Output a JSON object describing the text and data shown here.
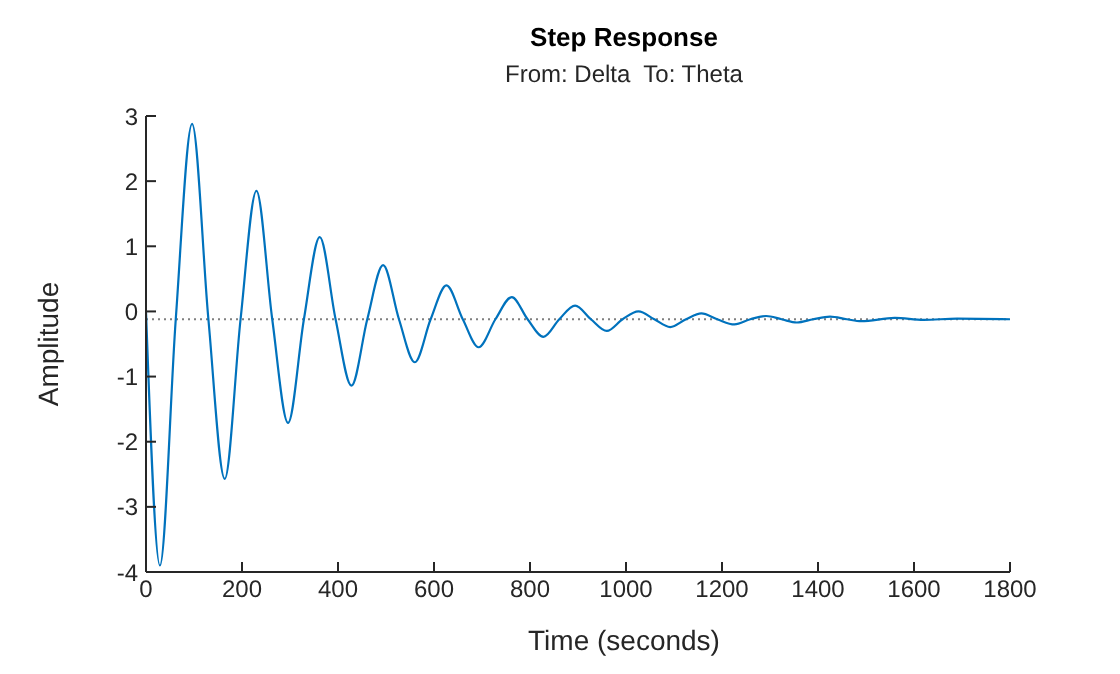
{
  "chart_data": {
    "type": "line",
    "title": "Step Response",
    "subtitle": "From: Delta  To: Theta",
    "xlabel": "Time (seconds)",
    "ylabel": "Amplitude",
    "x": [
      0,
      29,
      62,
      96,
      130,
      164,
      197,
      230,
      263,
      296,
      329,
      362,
      395,
      428,
      461,
      494,
      527,
      560,
      593,
      626,
      660,
      693,
      728,
      762,
      795,
      828,
      861,
      894,
      927,
      960,
      993,
      1026,
      1059,
      1092,
      1125,
      1157,
      1190,
      1226,
      1259,
      1292,
      1324,
      1356,
      1390,
      1425,
      1460,
      1490,
      1560,
      1620,
      1690,
      1800
    ],
    "series": [
      {
        "color": "#0072bd",
        "values": [
          0,
          -3.9,
          -0.12,
          2.88,
          -0.12,
          -2.57,
          -0.12,
          1.85,
          -0.12,
          -1.71,
          -0.12,
          1.14,
          -0.12,
          -1.14,
          -0.12,
          0.71,
          -0.12,
          -0.78,
          -0.12,
          0.4,
          -0.12,
          -0.55,
          -0.12,
          0.22,
          -0.12,
          -0.39,
          -0.12,
          0.09,
          -0.12,
          -0.3,
          -0.12,
          0,
          -0.12,
          -0.24,
          -0.12,
          -0.03,
          -0.12,
          -0.2,
          -0.12,
          -0.07,
          -0.12,
          -0.17,
          -0.12,
          -0.08,
          -0.12,
          -0.15,
          -0.1,
          -0.13,
          -0.11,
          -0.12
        ]
      }
    ],
    "xlim": [
      0,
      1800
    ],
    "xticks": [
      0,
      200,
      400,
      600,
      800,
      1000,
      1200,
      1400,
      1600,
      1800
    ],
    "ylim": [
      -4,
      3
    ],
    "yticks": [
      -4,
      -3,
      -2,
      -1,
      0,
      1,
      2,
      3
    ],
    "ref_lines": [
      {
        "axis": "y",
        "value": -0.12,
        "color": "#7f7f7f",
        "line_style": "dotted"
      }
    ],
    "grid": false,
    "legend": false,
    "marker": "none",
    "line_style": "solid"
  }
}
